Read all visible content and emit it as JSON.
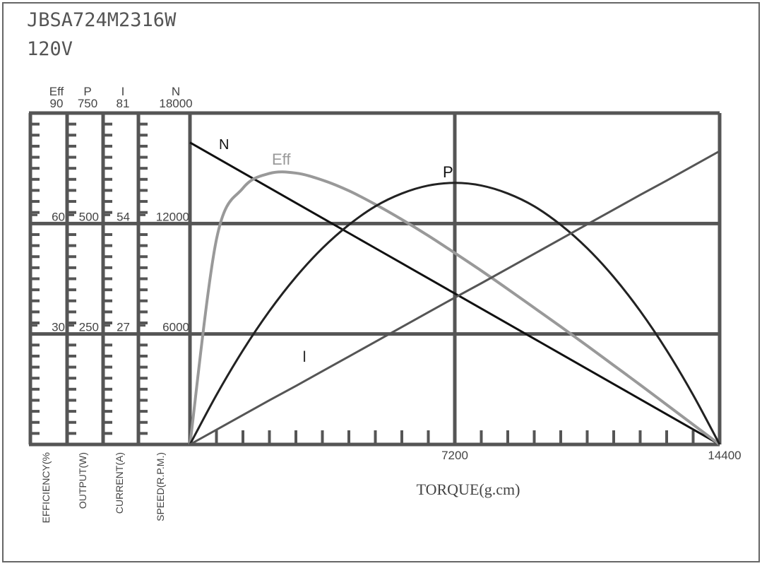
{
  "header": {
    "model": "JBSA724M2316W",
    "voltage": "120V"
  },
  "chart_data": {
    "type": "line",
    "xlabel": "TORQUE(g.cm)",
    "xlim": [
      0,
      14400
    ],
    "x_ticks": [
      "7200",
      "14400"
    ],
    "x_tick_values": [
      7200,
      14400
    ],
    "grid": true,
    "axes": [
      {
        "key": "eff",
        "symbol": "Eff",
        "label": "EFFICIENCY(%",
        "max": 90,
        "ticks": [
          "90",
          "60",
          "30"
        ]
      },
      {
        "key": "p",
        "symbol": "P",
        "label": "OUTPUT(W)",
        "max": 750,
        "ticks": [
          "750",
          "500",
          "250"
        ]
      },
      {
        "key": "i",
        "symbol": "I",
        "label": "CURRENT(A)",
        "max": 81,
        "ticks": [
          "81",
          "54",
          "27"
        ]
      },
      {
        "key": "n",
        "symbol": "N",
        "label": "SPEED(R.P.M.)",
        "max": 18000,
        "ticks": [
          "18000",
          "12000",
          "6000"
        ]
      }
    ],
    "x": [
      0,
      720,
      1440,
      2160,
      2880,
      3600,
      4320,
      5040,
      5760,
      6480,
      7200,
      7920,
      8640,
      9360,
      10080,
      10800,
      11520,
      12240,
      12960,
      13680,
      14400
    ],
    "series": [
      {
        "name": "N",
        "axis": "n",
        "color": "#111111",
        "values": [
          16400,
          15580,
          14760,
          13940,
          13120,
          12300,
          11480,
          10660,
          9840,
          9020,
          8200,
          7380,
          6560,
          5740,
          4920,
          4100,
          3280,
          2460,
          1640,
          820,
          0
        ]
      },
      {
        "name": "Eff",
        "axis": "eff",
        "color": "#999999",
        "values": [
          0,
          55.7,
          69.6,
          73.6,
          73.7,
          71.8,
          68.9,
          65.2,
          61.1,
          56.7,
          52.0,
          47.2,
          42.2,
          37.1,
          32.0,
          26.8,
          21.5,
          16.2,
          10.8,
          5.4,
          0
        ]
      },
      {
        "name": "P",
        "axis": "p",
        "color": "#222222",
        "values": [
          0,
          112,
          213,
          302,
          379,
          444,
          497,
          539,
          568,
          586,
          592,
          586,
          568,
          539,
          497,
          444,
          379,
          302,
          213,
          112,
          0
        ]
      },
      {
        "name": "I",
        "axis": "i",
        "color": "#555555",
        "values": [
          0,
          3.6,
          7.2,
          10.8,
          14.3,
          17.9,
          21.5,
          25.1,
          28.7,
          32.3,
          35.9,
          39.4,
          43.0,
          46.6,
          50.2,
          53.8,
          57.4,
          61.0,
          64.5,
          68.1,
          71.7
        ]
      }
    ]
  }
}
